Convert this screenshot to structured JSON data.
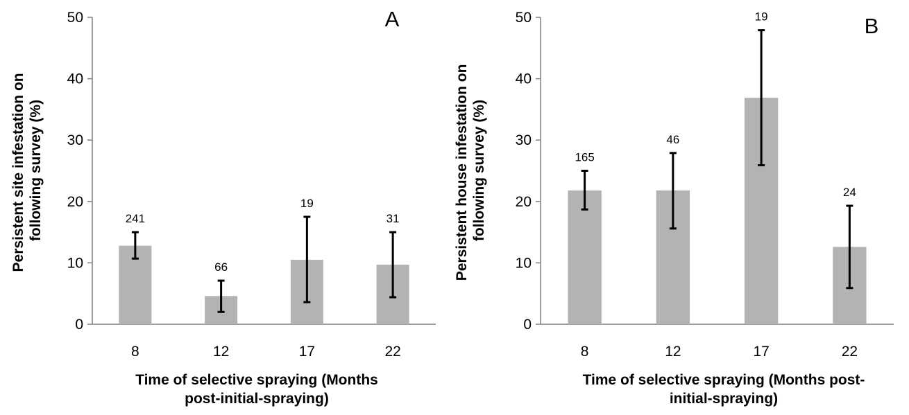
{
  "chart_data": [
    {
      "type": "bar",
      "panel_label": "A",
      "categories": [
        "8",
        "12",
        "17",
        "22"
      ],
      "values": [
        12.8,
        4.6,
        10.5,
        9.7
      ],
      "error_low": [
        10.7,
        2.0,
        3.6,
        4.4
      ],
      "error_high": [
        15.0,
        7.1,
        17.5,
        15.0
      ],
      "annotations": [
        "241",
        "66",
        "19",
        "31"
      ],
      "ylabel_lines": [
        "Persistent site infestation on",
        "following survey (%)"
      ],
      "xlabel_lines": [
        "Time of selective spraying (Months",
        "post-initial-spraying)"
      ],
      "ylim": [
        0,
        50
      ],
      "yticks": [
        "0",
        "10",
        "20",
        "30",
        "40",
        "50"
      ],
      "grid": false,
      "bar_color": "#b3b3b3"
    },
    {
      "type": "bar",
      "panel_label": "B",
      "categories": [
        "8",
        "12",
        "17",
        "22"
      ],
      "values": [
        21.8,
        21.8,
        36.9,
        12.6
      ],
      "error_low": [
        18.7,
        15.6,
        25.9,
        5.9
      ],
      "error_high": [
        25.0,
        27.9,
        47.9,
        19.3
      ],
      "annotations": [
        "165",
        "46",
        "19",
        "24"
      ],
      "ylabel_lines": [
        "Persistent house infestation on",
        "following survey (%)"
      ],
      "xlabel_lines": [
        "Time of selective spraying (Months post-",
        "initial-spraying)"
      ],
      "ylim": [
        0,
        50
      ],
      "yticks": [
        "0",
        "10",
        "20",
        "30",
        "40",
        "50"
      ],
      "grid": false,
      "bar_color": "#b3b3b3"
    }
  ]
}
